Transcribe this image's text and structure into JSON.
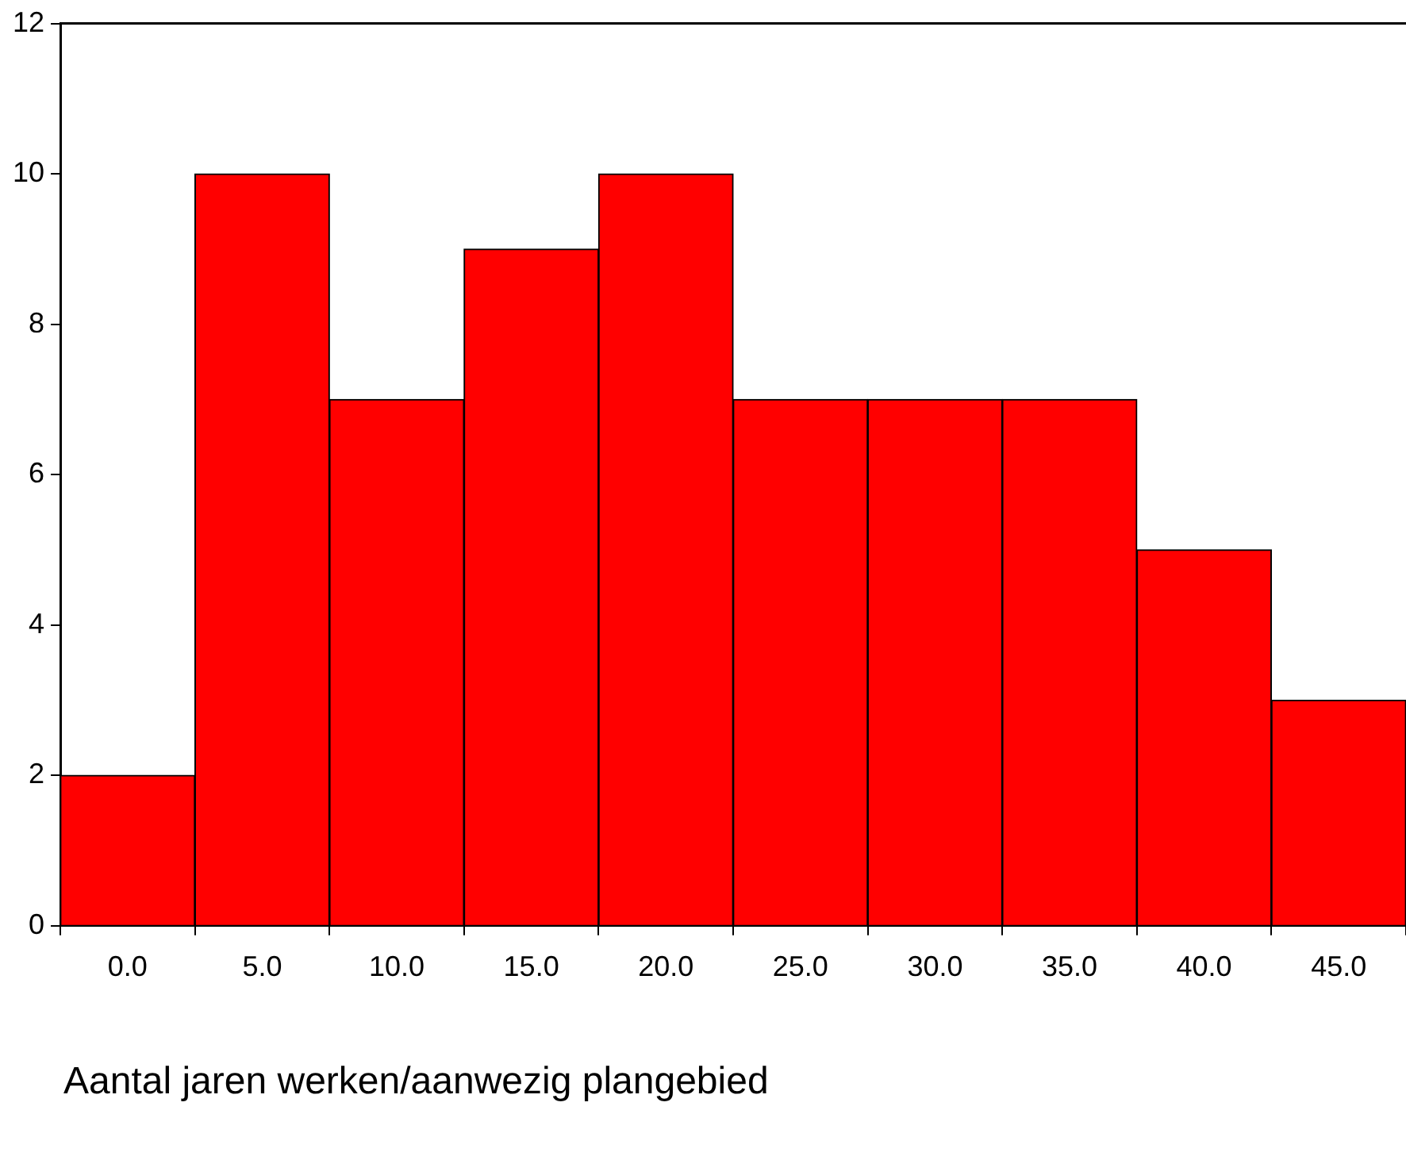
{
  "chart_data": {
    "type": "histogram",
    "xlabel": "Aantal jaren werken/aanwezig plangebied",
    "bins": [
      -2.5,
      2.5,
      7.5,
      12.5,
      17.5,
      22.5,
      27.5,
      32.5,
      37.5,
      42.5,
      47.5
    ],
    "values": [
      2,
      10,
      7,
      9,
      10,
      7,
      7,
      7,
      5,
      3
    ],
    "color": "#ff0000",
    "xlim": [
      -2.5,
      47.5
    ],
    "xticks": [
      {
        "value": 0,
        "label": "0.0"
      },
      {
        "value": 5,
        "label": "5.0"
      },
      {
        "value": 10,
        "label": "10.0"
      },
      {
        "value": 15,
        "label": "15.0"
      },
      {
        "value": 20,
        "label": "20.0"
      },
      {
        "value": 25,
        "label": "25.0"
      },
      {
        "value": 30,
        "label": "30.0"
      },
      {
        "value": 35,
        "label": "35.0"
      },
      {
        "value": 40,
        "label": "40.0"
      },
      {
        "value": 45,
        "label": "45.0"
      }
    ],
    "ylim": [
      0,
      12
    ],
    "yticks": [
      0,
      2,
      4,
      6,
      8,
      10,
      12
    ],
    "grid": false,
    "legend": false
  }
}
